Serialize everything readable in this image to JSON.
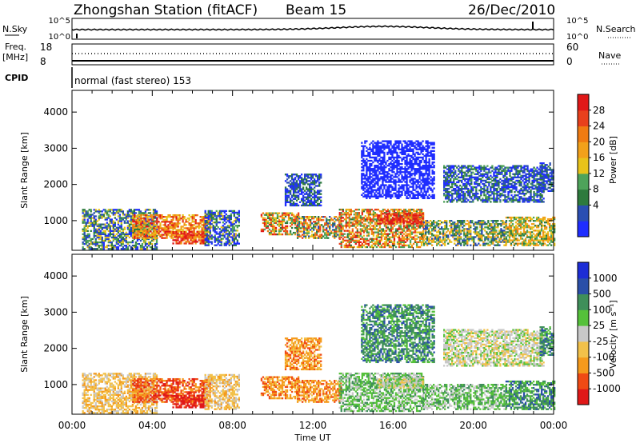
{
  "header": {
    "station": "Zhongshan Station (fitACF)",
    "beam": "Beam 15",
    "date": "26/Dec/2010"
  },
  "status_panels": {
    "nsky_label": "N.Sky",
    "nsky_ticks": [
      "10^5",
      "10^0"
    ],
    "nsearch_label": "N.Search",
    "nsearch_ticks": [
      "10^5",
      "10^0"
    ],
    "freq_label": "Freq.",
    "freq_unit": "[MHz]",
    "freq_ticks": [
      "18",
      "8"
    ],
    "nave_label": "Nave",
    "nave_ticks": [
      "60",
      "0"
    ],
    "cpid_label": "CPID",
    "mode_text": "normal (fast stereo) 153"
  },
  "colors": {
    "power": [
      "#1f2dff",
      "#2a4eb2",
      "#2d7a3d",
      "#4ea35a",
      "#e8c31a",
      "#f2a11a",
      "#f07b12",
      "#e8401c",
      "#e01818"
    ],
    "velocity": [
      "#e01818",
      "#f04a14",
      "#f59a1c",
      "#f2c14a",
      "#c8c8c8",
      "#55c13a",
      "#3f8f5a",
      "#2a4fa8",
      "#1c2dd6"
    ]
  },
  "chart_data": [
    {
      "type": "heatmap",
      "name": "power",
      "ylabel": "Slant Range [km]",
      "xlabel": "Time UT",
      "x_ticks": [
        "00:00",
        "04:00",
        "08:00",
        "12:00",
        "16:00",
        "20:00",
        "00:00"
      ],
      "y_ticks": [
        1000,
        2000,
        3000,
        4000
      ],
      "ylim": [
        180,
        4600
      ],
      "xlim_hours": [
        0,
        24
      ],
      "colorbar": {
        "label": "Power [dB]",
        "ticks": [
          "28",
          "24",
          "20",
          "16",
          "12",
          "8",
          "4"
        ],
        "range": [
          0,
          32
        ]
      }
    },
    {
      "type": "heatmap",
      "name": "velocity",
      "ylabel": "Slant Range [km]",
      "xlabel": "Time UT",
      "x_ticks": [
        "00:00",
        "04:00",
        "08:00",
        "12:00",
        "16:00",
        "20:00",
        "00:00"
      ],
      "y_ticks": [
        1000,
        2000,
        3000,
        4000
      ],
      "ylim": [
        180,
        4600
      ],
      "xlim_hours": [
        0,
        24
      ],
      "colorbar": {
        "label": "Velocity [m s⁻¹]",
        "ticks": [
          "1000",
          "500",
          "100",
          "25",
          "-25",
          "-100",
          "-500",
          "-1000"
        ]
      }
    }
  ]
}
